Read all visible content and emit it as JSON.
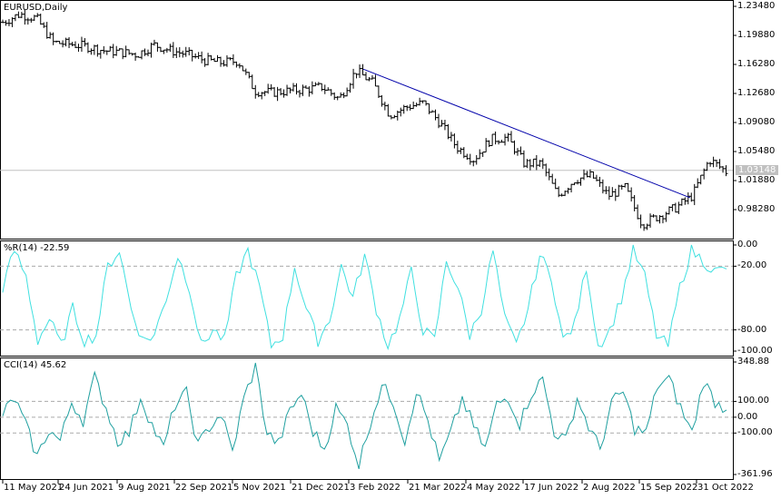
{
  "chart_data": [
    {
      "type": "ohlc",
      "title": "EURUSD,Daily",
      "symbol": "EURUSD",
      "timeframe": "Daily",
      "current_price": "1.03148",
      "y_ticks": [
        "1.23480",
        "1.19880",
        "1.16280",
        "1.12680",
        "1.09080",
        "1.05480",
        "1.01880",
        "0.98280"
      ],
      "ylim": [
        0.97,
        1.242
      ],
      "closes": [
        1.215,
        1.225,
        1.22,
        1.19,
        1.188,
        1.185,
        1.18,
        1.178,
        1.175,
        1.187,
        1.18,
        1.175,
        1.168,
        1.165,
        1.167,
        1.13,
        1.128,
        1.13,
        1.132,
        1.135,
        1.12,
        1.155,
        1.14,
        1.1,
        1.11,
        1.115,
        1.09,
        1.06,
        1.045,
        1.07,
        1.072,
        1.04,
        1.04,
        1.0,
        1.02,
        1.025,
        1.0,
        1.01,
        0.965,
        0.975,
        0.985,
        1.0,
        1.045,
        1.03
      ],
      "trendline": {
        "from_price": 1.157,
        "to_price": 0.9975,
        "color": "#0000aa"
      },
      "x_labels": [
        "11 May 2021",
        "24 Jun 2021",
        "9 Aug 2021",
        "22 Sep 2021",
        "5 Nov 2021",
        "21 Dec 2021",
        "3 Feb 2022",
        "21 Mar 2022",
        "4 May 2022",
        "17 Jun 2022",
        "2 Aug 2022",
        "15 Sep 2022",
        "31 Oct 2022"
      ]
    },
    {
      "type": "line",
      "title": "%R(14) -22.59",
      "color": "#40e0e0",
      "y_ticks": [
        "0.00",
        "-20.00",
        "-80.00",
        "-100.00"
      ],
      "levels": [
        -20,
        -80
      ],
      "ylim": [
        -100,
        0
      ],
      "values": [
        -40,
        -5,
        -30,
        -90,
        -70,
        -95,
        -60,
        -90,
        -85,
        -20,
        -5,
        -60,
        -90,
        -85,
        -50,
        -10,
        -40,
        -95,
        -80,
        -90,
        -30,
        -5,
        -40,
        -95,
        -85,
        -20,
        -60,
        -90,
        -70,
        -20,
        -50,
        -10,
        -60,
        -95,
        -70,
        -25,
        -80,
        -90,
        -15,
        -40,
        -85,
        -60,
        -5,
        -70,
        -95,
        -60,
        -10,
        -30,
        -90,
        -75,
        -20,
        -95,
        -80,
        -50,
        -5,
        -30,
        -85,
        -95,
        -40,
        -5,
        -15,
        -25,
        -22.59
      ]
    },
    {
      "type": "line",
      "title": "CCI(14) 45.62",
      "color": "#20a0a0",
      "y_ticks": [
        "348.88",
        "100.00",
        "0.00",
        "-100.00",
        "-361.96"
      ],
      "levels": [
        100,
        0,
        -100
      ],
      "ylim": [
        -361.96,
        348.88
      ],
      "values": [
        20,
        120,
        -50,
        -250,
        -80,
        -150,
        100,
        -20,
        250,
        60,
        -150,
        -100,
        130,
        -50,
        -200,
        80,
        150,
        -180,
        -60,
        20,
        -220,
        120,
        320,
        -100,
        -170,
        40,
        150,
        -90,
        -200,
        60,
        -50,
        -300,
        -30,
        200,
        100,
        -150,
        170,
        -20,
        -280,
        -100,
        120,
        -60,
        -200,
        80,
        130,
        -40,
        150,
        240,
        -90,
        -150,
        120,
        -60,
        -200,
        90,
        160,
        -70,
        -100,
        200,
        240,
        60,
        -100,
        230,
        100,
        45.62
      ]
    }
  ]
}
